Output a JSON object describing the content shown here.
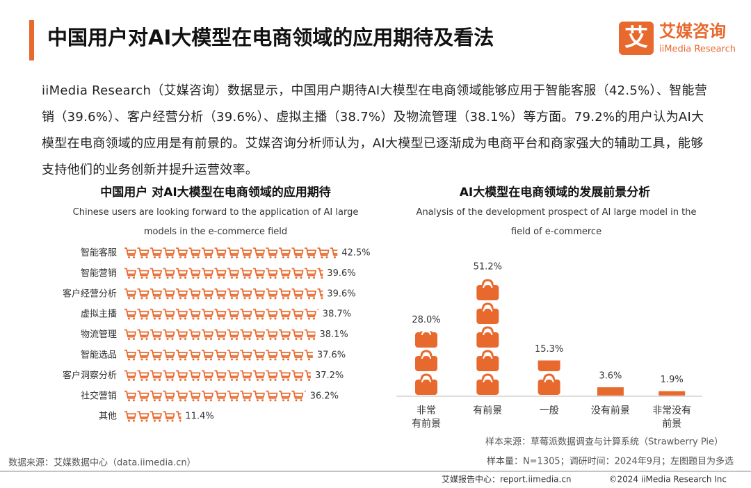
{
  "header": {
    "title": "中国用户对AI大模型在电商领域的应用期待及看法",
    "logo_mark": "艾",
    "brand_cn": "艾媒咨询",
    "brand_en": "iiMedia Research"
  },
  "paragraph": "iiMedia Research（艾媒咨询）数据显示，中国用户期待AI大模型在电商领域能够应用于智能客服（42.5%）、智能营销（39.6%）、客户经营分析（39.6%）、虚拟主播（38.7%）及物流管理（38.1%）等方面。79.2%的用户认为AI大模型在电商领域的应用是有前景的。艾媒咨询分析师认为，AI大模型已逐渐成为电商平台和商家强大的辅助工具，能够支持他们的业务创新并提升运营效率。",
  "chart_data": [
    {
      "type": "pictorial-bar",
      "title": "中国用户 对AI大模型在电商领域的应用期待",
      "subtitle": "Chinese users are looking forward to the application of AI large models in the e-commerce field",
      "categories": [
        "智能客服",
        "智能营销",
        "客户经营分析",
        "虚拟主播",
        "物流管理",
        "智能选品",
        "客户洞察分析",
        "社交营销",
        "其他"
      ],
      "values": [
        42.5,
        39.6,
        39.6,
        38.7,
        38.1,
        37.6,
        37.2,
        36.2,
        11.4
      ],
      "value_labels": [
        "42.5%",
        "39.6%",
        "39.6%",
        "38.7%",
        "38.1%",
        "37.6%",
        "37.2%",
        "36.2%",
        "11.4%"
      ],
      "color": "#e8692e"
    },
    {
      "type": "pictorial-column",
      "title": "AI大模型在电商领域的发展前景分析",
      "subtitle": "Analysis of the development prospect of AI large model in the field of e-commerce",
      "categories": [
        "非常\n有前景",
        "有前景",
        "一般",
        "没有前景",
        "非常没有\n前景"
      ],
      "values": [
        28.0,
        51.2,
        15.3,
        3.6,
        1.9
      ],
      "value_labels": [
        "28.0%",
        "51.2%",
        "15.3%",
        "3.6%",
        "1.9%"
      ],
      "color": "#e8692e"
    }
  ],
  "footer": {
    "data_source": "数据来源：艾媒数据中心（data.iimedia.cn）",
    "sample_source": "样本来源：草莓派数据调查与计算系统（Strawberry Pie）",
    "sample_size": "样本量：N=1305；调研时间：2024年9月；左图题目为多选",
    "report_center": "艾媒报告中心：report.iimedia.cn",
    "copyright": "©2024 iiMedia Research Inc"
  }
}
